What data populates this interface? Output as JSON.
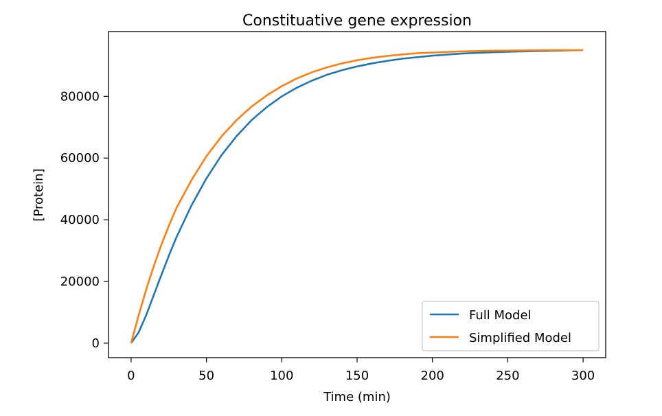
{
  "chart_data": {
    "type": "line",
    "title": "Constituative gene expression",
    "xlabel": "Time (min)",
    "ylabel": "[Protein]",
    "xlim": [
      -15,
      315
    ],
    "ylim": [
      -4700,
      101000
    ],
    "xticks": [
      0,
      50,
      100,
      150,
      200,
      250,
      300
    ],
    "yticks": [
      0,
      20000,
      40000,
      60000,
      80000
    ],
    "grid": false,
    "legend": {
      "position": "bottom-right"
    },
    "series": [
      {
        "name": "Full Model",
        "color": "#1f77b4",
        "x": [
          0,
          5,
          10,
          15,
          20,
          25,
          30,
          40,
          50,
          60,
          70,
          80,
          90,
          100,
          110,
          120,
          130,
          140,
          150,
          160,
          170,
          180,
          190,
          200,
          220,
          240,
          260,
          280,
          300
        ],
        "y": [
          0,
          3500,
          9000,
          15500,
          22000,
          28300,
          34200,
          44600,
          53400,
          60900,
          67100,
          72300,
          76500,
          80000,
          82800,
          85100,
          87000,
          88500,
          89700,
          90700,
          91500,
          92200,
          92700,
          93200,
          93900,
          94300,
          94600,
          94800,
          95000
        ]
      },
      {
        "name": "Simplified Model",
        "color": "#ff7f0e",
        "x": [
          0,
          5,
          10,
          15,
          20,
          25,
          30,
          40,
          50,
          60,
          70,
          80,
          90,
          100,
          110,
          120,
          130,
          140,
          150,
          160,
          170,
          180,
          190,
          200,
          220,
          240,
          260,
          280,
          300
        ],
        "y": [
          0,
          9000,
          17300,
          24900,
          31800,
          38000,
          43700,
          52800,
          60600,
          67000,
          72300,
          76700,
          80300,
          83300,
          85800,
          87800,
          89400,
          90700,
          91700,
          92500,
          93100,
          93600,
          94000,
          94200,
          94600,
          94800,
          94900,
          95000,
          95000
        ]
      }
    ]
  }
}
